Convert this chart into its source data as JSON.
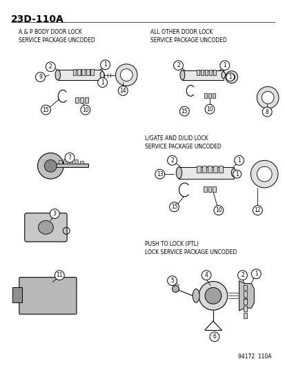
{
  "page_id": "23D-110A",
  "bg_color": "#ffffff",
  "text_color": "#000000",
  "footer": "94172  110A",
  "section1_title": "A & P BODY DOOR LOCK\nSERVICE PACKAGE UNCODED",
  "section2_title": "ALL OTHER DOOR LOCK\nSERVICE PACKAGE UNCODED",
  "section3_title": "L/GATE AND D/LID LOCK\nSERVICE PACKAGE UNCODED",
  "section4_title": "PUSH TO LOCK (PTL)\nLOCK SERVICE PACKAGE UNCODED",
  "figsize": [
    4.14,
    5.33
  ],
  "dpi": 100
}
